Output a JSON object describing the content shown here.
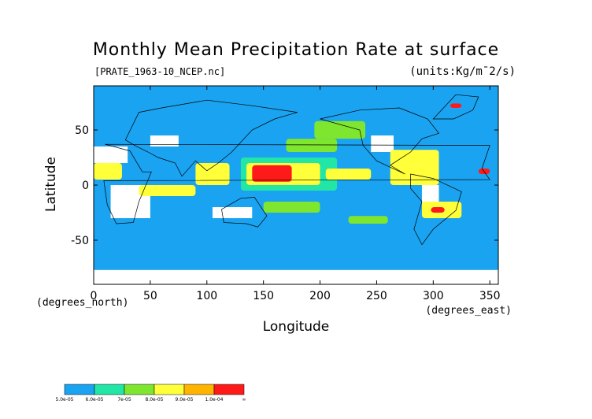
{
  "title": "Monthly Mean Precipitation Rate at surface",
  "file_label": "[PRATE_1963-10_NCEP.nc]",
  "units_label": "(units:Kg/m¯2/s)",
  "xlabel": "Longitude",
  "ylabel": "Latitude",
  "x_units": "(degrees_east)",
  "y_units": "(degrees_north)",
  "chart_data": {
    "type": "heatmap",
    "title": "Monthly Mean Precipitation Rate at surface",
    "xlabel": "Longitude",
    "ylabel": "Latitude",
    "xlim": [
      0,
      357.5
    ],
    "ylim": [
      -90,
      90
    ],
    "xticks": [
      0,
      50,
      100,
      150,
      200,
      250,
      300,
      350
    ],
    "yticks": [
      50,
      0,
      -50
    ],
    "grid": false,
    "colorbar": {
      "placement": "bottom-left",
      "bins": [
        {
          "label": "5.0e-05",
          "color": "#1aa3f0"
        },
        {
          "label": "6.0e-05",
          "color": "#22e6a6"
        },
        {
          "label": "7e-05",
          "color": "#7ee62e"
        },
        {
          "label": "8.0e-05",
          "color": "#ffff3a"
        },
        {
          "label": "9.0e-05",
          "color": "#ffb400"
        },
        {
          "label": "1.0e-04",
          "color": "#ff1a1a"
        },
        {
          "label": "∞",
          "color": null
        }
      ]
    },
    "background_color": "#1aa3f0",
    "missing_color": "#ffffff",
    "regions": [
      {
        "level": "missing",
        "lon": [
          0,
          357.5
        ],
        "lat": [
          -90,
          -77
        ]
      },
      {
        "level": "missing",
        "lon": [
          15,
          50
        ],
        "lat": [
          -30,
          0
        ]
      },
      {
        "level": "missing",
        "lon": [
          0,
          30
        ],
        "lat": [
          20,
          35
        ]
      },
      {
        "level": "missing",
        "lon": [
          50,
          75
        ],
        "lat": [
          35,
          45
        ]
      },
      {
        "level": "missing",
        "lon": [
          105,
          140
        ],
        "lat": [
          -30,
          -20
        ]
      },
      {
        "level": "missing",
        "lon": [
          290,
          305
        ],
        "lat": [
          -20,
          0
        ]
      },
      {
        "level": "missing",
        "lon": [
          245,
          265
        ],
        "lat": [
          30,
          45
        ]
      },
      {
        "level": "missing",
        "lon": [
          5,
          50
        ],
        "lat": [
          -25,
          15
        ],
        "bin": 1
      },
      {
        "level": "bin",
        "bin": 1,
        "lon": [
          130,
          215
        ],
        "lat": [
          -5,
          25
        ]
      },
      {
        "level": "bin",
        "bin": 3,
        "lon": [
          135,
          200
        ],
        "lat": [
          0,
          20
        ]
      },
      {
        "level": "bin",
        "bin": 5,
        "lon": [
          140,
          175
        ],
        "lat": [
          3,
          18
        ]
      },
      {
        "level": "bin",
        "bin": 5,
        "lon": [
          45,
          85
        ],
        "lat": [
          -8,
          -3
        ]
      },
      {
        "level": "bin",
        "bin": 3,
        "lon": [
          40,
          90
        ],
        "lat": [
          -10,
          0
        ]
      },
      {
        "level": "bin",
        "bin": 5,
        "lon": [
          268,
          300
        ],
        "lat": [
          3,
          28
        ]
      },
      {
        "level": "bin",
        "bin": 3,
        "lon": [
          262,
          305
        ],
        "lat": [
          0,
          32
        ]
      },
      {
        "level": "bin",
        "bin": 5,
        "lon": [
          0,
          18
        ],
        "lat": [
          10,
          16
        ]
      },
      {
        "level": "bin",
        "bin": 3,
        "lon": [
          0,
          25
        ],
        "lat": [
          5,
          20
        ]
      },
      {
        "level": "bin",
        "bin": 5,
        "lon": [
          95,
          115
        ],
        "lat": [
          5,
          15
        ]
      },
      {
        "level": "bin",
        "bin": 3,
        "lon": [
          90,
          120
        ],
        "lat": [
          0,
          20
        ]
      },
      {
        "level": "bin",
        "bin": 5,
        "lon": [
          215,
          240
        ],
        "lat": [
          8,
          14
        ]
      },
      {
        "level": "bin",
        "bin": 3,
        "lon": [
          205,
          245
        ],
        "lat": [
          5,
          15
        ]
      },
      {
        "level": "bin",
        "bin": 5,
        "lon": [
          222,
          232
        ],
        "lat": [
          45,
          52
        ]
      },
      {
        "level": "bin",
        "bin": 2,
        "lon": [
          195,
          240
        ],
        "lat": [
          42,
          58
        ]
      },
      {
        "level": "bin",
        "bin": 5,
        "lon": [
          340,
          350
        ],
        "lat": [
          10,
          15
        ]
      },
      {
        "level": "bin",
        "bin": 2,
        "lon": [
          170,
          215
        ],
        "lat": [
          30,
          42
        ]
      },
      {
        "level": "bin",
        "bin": 2,
        "lon": [
          150,
          200
        ],
        "lat": [
          -25,
          -15
        ]
      },
      {
        "level": "bin",
        "bin": 2,
        "lon": [
          225,
          260
        ],
        "lat": [
          -35,
          -28
        ]
      },
      {
        "level": "bin",
        "bin": 3,
        "lon": [
          290,
          325
        ],
        "lat": [
          -30,
          -15
        ]
      },
      {
        "level": "bin",
        "bin": 5,
        "lon": [
          298,
          310
        ],
        "lat": [
          -25,
          -20
        ]
      },
      {
        "level": "bin",
        "bin": 5,
        "lon": [
          315,
          325
        ],
        "lat": [
          70,
          74
        ]
      }
    ]
  }
}
